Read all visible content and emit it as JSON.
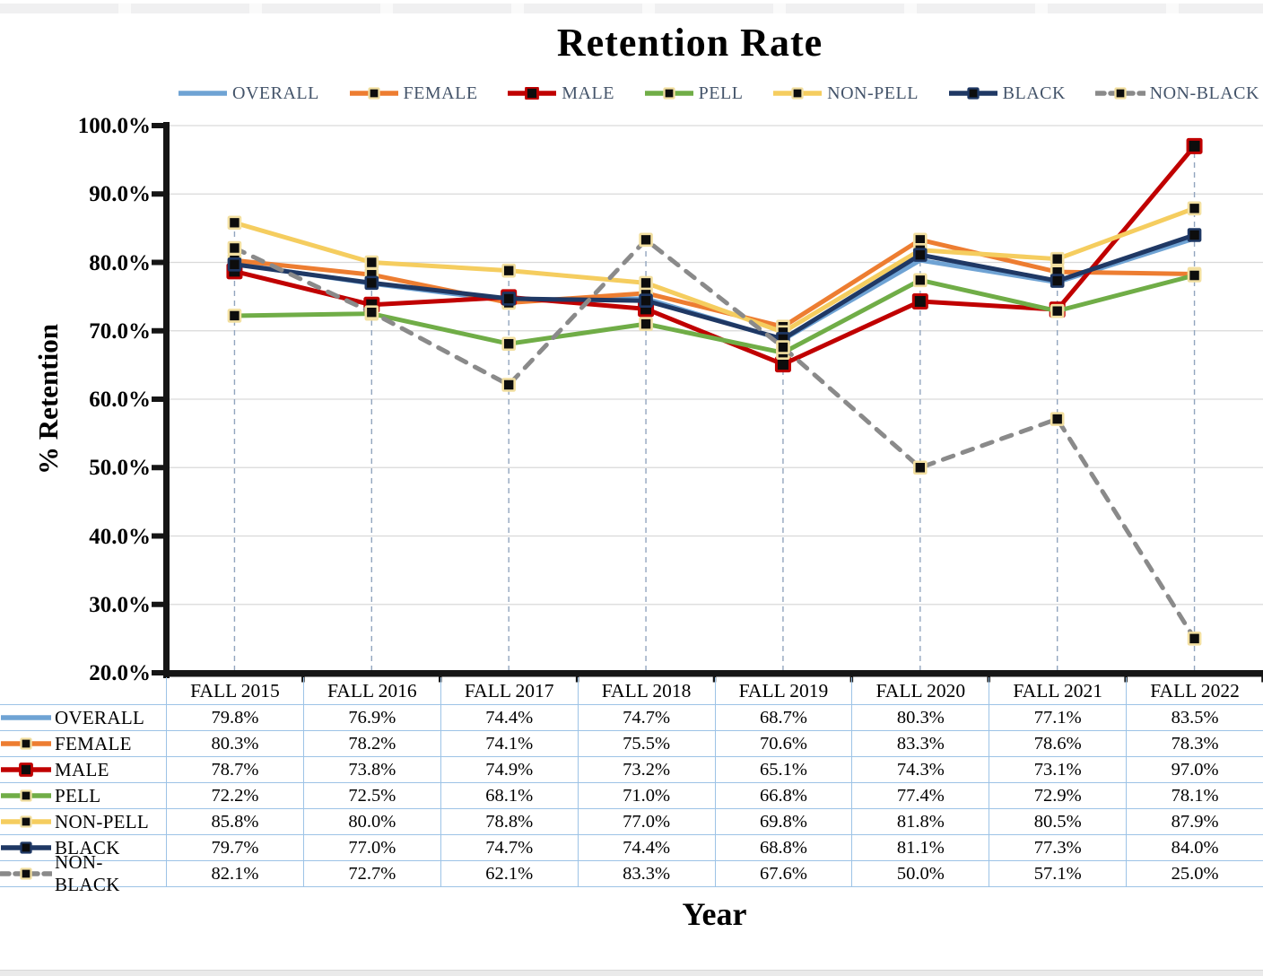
{
  "chart_data": {
    "type": "line",
    "title": "Retention Rate",
    "xlabel": "Year",
    "ylabel": "% Retention",
    "ylim": [
      20,
      100
    ],
    "y_tick_step": 10,
    "y_tick_labels": [
      "100.0%",
      "90.0%",
      "80.0%",
      "70.0%",
      "60.0%",
      "50.0%",
      "40.0%",
      "30.0%",
      "20.0%"
    ],
    "grid": true,
    "legend_position": "top",
    "value_format": "percent-1-decimal",
    "categories": [
      "FALL 2015",
      "FALL 2016",
      "FALL 2017",
      "FALL 2018",
      "FALL 2019",
      "FALL 2020",
      "FALL 2021",
      "FALL 2022"
    ],
    "series": [
      {
        "name": "OVERALL",
        "color": "#6FA3D4",
        "dashed": false,
        "marker": null,
        "values": [
          79.8,
          76.9,
          74.4,
          74.7,
          68.7,
          80.3,
          77.1,
          83.5
        ]
      },
      {
        "name": "FEMALE",
        "color": "#ED7D31",
        "dashed": false,
        "marker": {
          "shape": "square",
          "fill": "#0D0D0D",
          "border": "#F2DFA0"
        },
        "values": [
          80.3,
          78.2,
          74.1,
          75.5,
          70.6,
          83.3,
          78.6,
          78.3
        ]
      },
      {
        "name": "MALE",
        "color": "#C00000",
        "dashed": false,
        "marker": {
          "shape": "square",
          "fill": "#0D0D0D",
          "border": "#C00000"
        },
        "values": [
          78.7,
          73.8,
          74.9,
          73.2,
          65.1,
          74.3,
          73.1,
          97.0
        ]
      },
      {
        "name": "PELL",
        "color": "#70AD47",
        "dashed": false,
        "marker": {
          "shape": "square",
          "fill": "#0D0D0D",
          "border": "#F2DFA0"
        },
        "values": [
          72.2,
          72.5,
          68.1,
          71.0,
          66.8,
          77.4,
          72.9,
          78.1
        ]
      },
      {
        "name": "NON-PELL",
        "color": "#F5CD5F",
        "dashed": false,
        "marker": {
          "shape": "square",
          "fill": "#0D0D0D",
          "border": "#F2DFA0"
        },
        "values": [
          85.8,
          80.0,
          78.8,
          77.0,
          69.8,
          81.8,
          80.5,
          87.9
        ]
      },
      {
        "name": "BLACK",
        "color": "#1F3864",
        "dashed": false,
        "marker": {
          "shape": "square",
          "fill": "#0D0D0D",
          "border": "#1F3864"
        },
        "values": [
          79.7,
          77.0,
          74.7,
          74.4,
          68.8,
          81.1,
          77.3,
          84.0
        ]
      },
      {
        "name": "NON-BLACK",
        "color": "#8A8A8A",
        "dashed": true,
        "marker": {
          "shape": "square",
          "fill": "#0D0D0D",
          "border": "#F2DFA0"
        },
        "values": [
          82.1,
          72.7,
          62.1,
          83.3,
          67.6,
          50.0,
          57.1,
          25.0
        ]
      }
    ],
    "colors": {
      "grid": "#D9D9D9",
      "axis": "#151515",
      "drop_line": "#92A5BE",
      "table_grid": "#9DC3E6",
      "legend_text": "#44546A"
    }
  }
}
